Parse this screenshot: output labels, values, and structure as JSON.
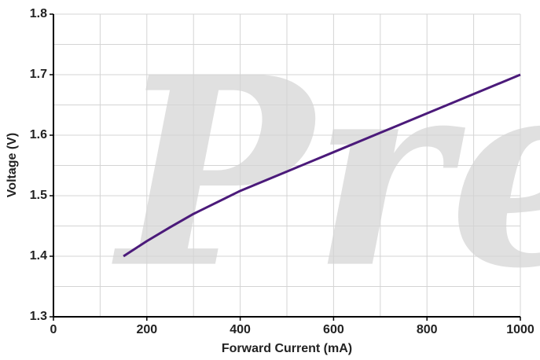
{
  "chart_data": {
    "type": "line",
    "watermark": "Pre",
    "x_label": "Forward Current (mA)",
    "y_label": "Voltage (V)",
    "x": [
      150,
      200,
      250,
      300,
      400,
      500,
      600,
      700,
      800,
      900,
      1000
    ],
    "series": [
      {
        "name": "Voltage",
        "color": "#4b1a7a",
        "values": [
          1.4,
          1.425,
          1.448,
          1.47,
          1.508,
          1.54,
          1.572,
          1.604,
          1.636,
          1.668,
          1.7
        ]
      }
    ],
    "xlim": [
      0,
      1000
    ],
    "xticks": [
      0,
      200,
      400,
      600,
      800,
      1000
    ],
    "ylim": [
      1.3,
      1.8
    ],
    "yticks": [
      1.3,
      1.4,
      1.5,
      1.6,
      1.7,
      1.8
    ],
    "minor_xticks": [
      100,
      300,
      500,
      700,
      900
    ],
    "minor_yticks": [
      1.35,
      1.45,
      1.55,
      1.65,
      1.75
    ],
    "grid": true
  }
}
